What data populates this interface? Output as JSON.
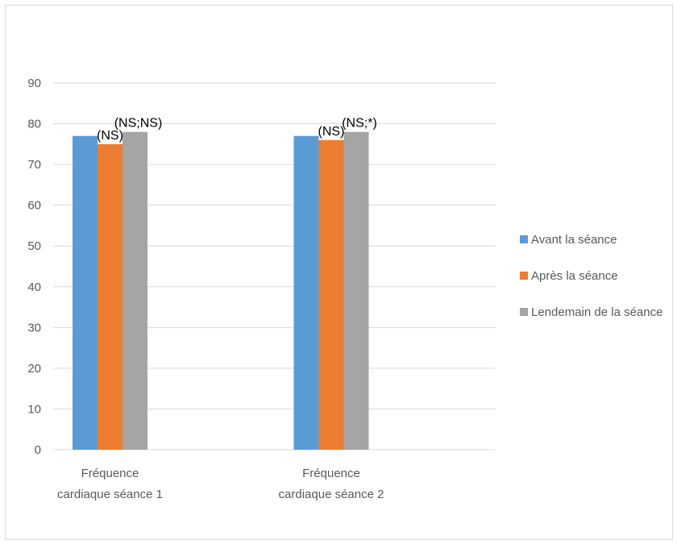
{
  "chart_data": {
    "type": "bar",
    "categories": [
      [
        "Fréquence",
        "cardiaque séance 1"
      ],
      [
        "Fréquence",
        "cardiaque séance 2"
      ]
    ],
    "series": [
      {
        "name": "Avant la séance",
        "color": "#5B9BD5",
        "values": [
          77,
          77
        ]
      },
      {
        "name": "Après la séance",
        "color": "#ED7D31",
        "values": [
          75,
          76
        ]
      },
      {
        "name": "Lendemain de la séance",
        "color": "#A5A5A5",
        "values": [
          78,
          78
        ]
      }
    ],
    "annotations": [
      [
        "(NS)",
        "(NS;NS)"
      ],
      [
        "(NS)",
        "(NS;*)"
      ]
    ],
    "ylim": [
      0,
      90
    ],
    "yticks": [
      0,
      10,
      20,
      30,
      40,
      50,
      60,
      70,
      80,
      90
    ],
    "grid": true,
    "legend_position": "right",
    "title": "",
    "xlabel": "",
    "ylabel": ""
  }
}
